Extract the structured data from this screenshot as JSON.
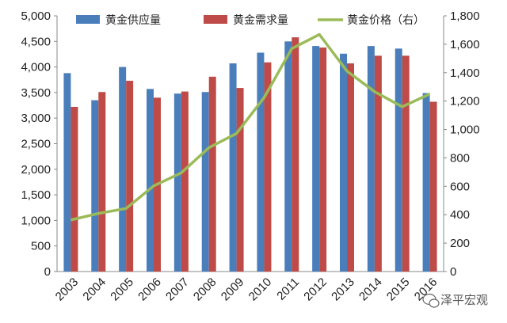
{
  "chart_data": {
    "type": "bar",
    "categories": [
      "2003",
      "2004",
      "2005",
      "2006",
      "2007",
      "2008",
      "2009",
      "2010",
      "2011",
      "2012",
      "2013",
      "2014",
      "2015",
      "2016"
    ],
    "series": [
      {
        "name": "黄金供应量",
        "kind": "bar",
        "axis": "left",
        "color": "#4a7ebb",
        "values": [
          3880,
          3350,
          4000,
          3570,
          3480,
          3510,
          4070,
          4280,
          4500,
          4410,
          4260,
          4410,
          4360,
          3490
        ]
      },
      {
        "name": "黄金需求量",
        "kind": "bar",
        "axis": "left",
        "color": "#be4b48",
        "values": [
          3220,
          3510,
          3730,
          3400,
          3520,
          3810,
          3590,
          4090,
          4580,
          4380,
          4070,
          4220,
          4220,
          3320
        ]
      },
      {
        "name": "黄金价格（右）",
        "kind": "line",
        "axis": "right",
        "color": "#9bbb59",
        "values": [
          363,
          409,
          444,
          603,
          695,
          872,
          972,
          1225,
          1569,
          1669,
          1411,
          1266,
          1160,
          1250
        ]
      }
    ],
    "left_axis": {
      "min": 0,
      "max": 5000,
      "step": 500,
      "tick_labels": [
        "0",
        "500",
        "1,000",
        "1,500",
        "2,000",
        "2,500",
        "3,000",
        "3,500",
        "4,000",
        "4,500",
        "5,000"
      ]
    },
    "right_axis": {
      "min": 0,
      "max": 1800,
      "step": 200,
      "tick_labels": [
        "0",
        "200",
        "400",
        "600",
        "800",
        "1,000",
        "1,200",
        "1,400",
        "1,600",
        "1,800"
      ]
    },
    "grid": false,
    "legend_position": "top"
  },
  "watermark": {
    "text": "泽平宏观",
    "icon": "wechat-icon"
  }
}
